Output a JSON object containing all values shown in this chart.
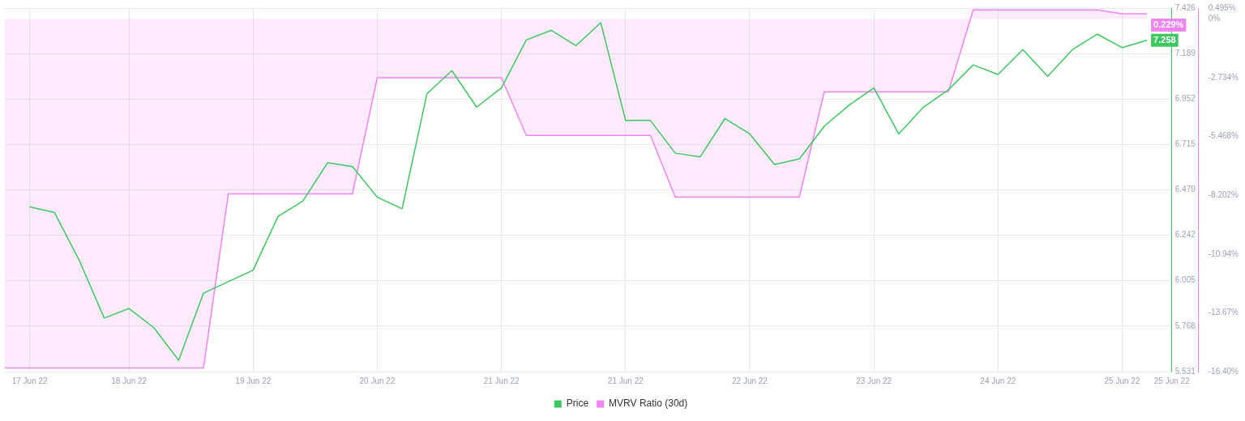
{
  "chart_data": {
    "type": "line",
    "categories": [
      null,
      "17 Jun 22",
      null,
      null,
      null,
      "18 Jun 22",
      null,
      null,
      null,
      null,
      "19 Jun 22",
      null,
      null,
      null,
      null,
      "20 Jun 22",
      null,
      null,
      null,
      null,
      "21 Jun 22",
      null,
      null,
      null,
      null,
      "21 Jun 22",
      null,
      null,
      null,
      null,
      "22 Jun 22",
      null,
      null,
      null,
      null,
      "23 Jun 22",
      null,
      null,
      null,
      null,
      "24 Jun 22",
      null,
      null,
      null,
      null,
      "25 Jun 22",
      null,
      "25 Jun 22"
    ],
    "series": [
      {
        "name": "Price",
        "color": "#3cc85e",
        "values": [
          null,
          6.39,
          6.36,
          6.11,
          5.81,
          5.86,
          5.76,
          5.59,
          5.94,
          6.0,
          6.06,
          6.34,
          6.42,
          6.62,
          6.6,
          6.44,
          6.38,
          6.98,
          7.1,
          6.91,
          7.01,
          7.26,
          7.31,
          7.23,
          7.35,
          6.84,
          6.84,
          6.67,
          6.65,
          6.85,
          6.77,
          6.61,
          6.64,
          6.81,
          6.92,
          7.01,
          6.77,
          6.91,
          7.0,
          7.13,
          7.08,
          7.21,
          7.07,
          7.21,
          7.29,
          7.22,
          7.258,
          null
        ],
        "value_labels": [
          null,
          null,
          null,
          null,
          null,
          null,
          null,
          null,
          null,
          null,
          null,
          null,
          null,
          null,
          null,
          null,
          null,
          null,
          null,
          null,
          null,
          null,
          null,
          null,
          null,
          null,
          null,
          null,
          null,
          null,
          null,
          null,
          null,
          null,
          null,
          null,
          null,
          null,
          null,
          null,
          null,
          null,
          null,
          null,
          null,
          null,
          "7.258",
          null
        ]
      },
      {
        "name": "MVRV Ratio (30d)",
        "type": "area",
        "axis": "y2",
        "color": "#f383f3",
        "values": [
          -16.23,
          -16.23,
          -16.23,
          -16.23,
          -16.23,
          -16.23,
          -16.23,
          -16.23,
          -16.23,
          -8.14,
          -8.14,
          -8.14,
          -8.14,
          -8.14,
          -8.14,
          -2.74,
          -2.74,
          -2.74,
          -2.74,
          -2.74,
          -2.74,
          -5.42,
          -5.42,
          -5.42,
          -5.42,
          -5.42,
          -5.42,
          -8.29,
          -8.29,
          -8.29,
          -8.29,
          -8.29,
          -8.29,
          -3.4,
          -3.4,
          -3.4,
          -3.4,
          -3.4,
          -3.4,
          0.41,
          0.41,
          0.41,
          0.41,
          0.41,
          0.41,
          0.229,
          0.229,
          null
        ],
        "value_labels": [
          null,
          null,
          null,
          null,
          null,
          null,
          null,
          null,
          null,
          null,
          null,
          null,
          null,
          null,
          null,
          null,
          null,
          null,
          null,
          null,
          null,
          null,
          null,
          null,
          null,
          null,
          null,
          null,
          null,
          null,
          null,
          null,
          null,
          null,
          null,
          null,
          null,
          null,
          null,
          null,
          null,
          null,
          null,
          null,
          null,
          null,
          "0.229%",
          null
        ]
      }
    ],
    "ylim": [
      5.531,
      7.426
    ],
    "yticks": [
      5.531,
      5.768,
      6.005,
      6.242,
      6.479,
      6.715,
      6.952,
      7.189,
      7.426
    ],
    "y2lim": [
      -16.4,
      0.495
    ],
    "y2ticks": [
      {
        "value": 0.495,
        "label": "0.495%"
      },
      {
        "value": 0,
        "label": "0%"
      },
      {
        "value": -2.734,
        "label": "-2.734%"
      },
      {
        "value": -5.468,
        "label": "-5.468%"
      },
      {
        "value": -8.202,
        "label": "-8.202%"
      },
      {
        "value": -10.94,
        "label": "-10.94%"
      },
      {
        "value": -13.67,
        "label": "-13.67%"
      },
      {
        "value": -16.4,
        "label": "-16.40%"
      }
    ],
    "grid": true,
    "legend": "bottom",
    "marker": "none",
    "line_style": "solid"
  }
}
